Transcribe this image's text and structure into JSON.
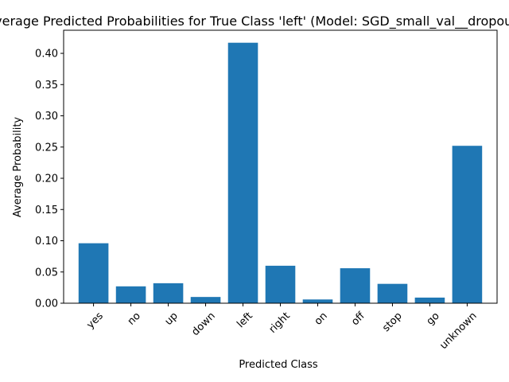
{
  "chart_data": {
    "type": "bar",
    "title": "Average Predicted Probabilities for True Class 'left' (Model: SGD_small_val__dropout)",
    "xlabel": "Predicted Class",
    "ylabel": "Average Probability",
    "categories": [
      "yes",
      "no",
      "up",
      "down",
      "left",
      "right",
      "on",
      "off",
      "stop",
      "go",
      "unknown"
    ],
    "values": [
      0.096,
      0.027,
      0.032,
      0.01,
      0.417,
      0.06,
      0.006,
      0.056,
      0.031,
      0.009,
      0.252
    ],
    "ylim": [
      0,
      0.437
    ],
    "yticks": [
      0.0,
      0.05,
      0.1,
      0.15,
      0.2,
      0.25,
      0.3,
      0.35,
      0.4
    ],
    "ytick_labels": [
      "0.00",
      "0.05",
      "0.10",
      "0.15",
      "0.20",
      "0.25",
      "0.30",
      "0.35",
      "0.40"
    ],
    "bar_color": "#1f77b4",
    "grid": false,
    "legend": "none"
  }
}
